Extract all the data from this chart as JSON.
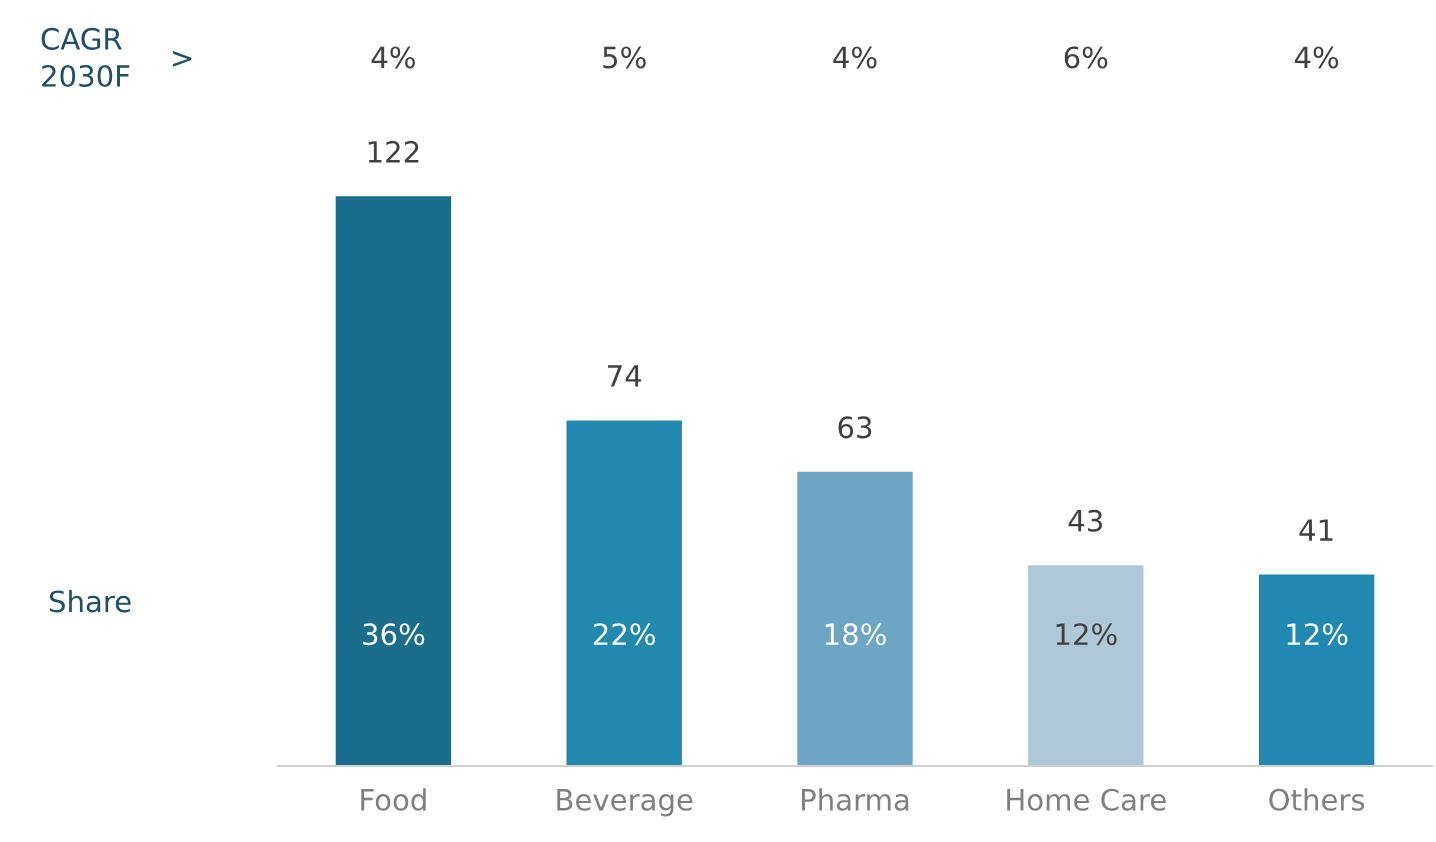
{
  "chart_data": {
    "type": "bar",
    "categories": [
      "Food",
      "Beverage",
      "Pharma",
      "Home Care",
      "Others"
    ],
    "values": [
      122,
      74,
      63,
      43,
      41
    ],
    "colors": [
      "#1b6d8c",
      "#2189ae",
      "#6fa5c4",
      "#afc8d8",
      "#2189b1"
    ],
    "data_labels": true,
    "grid": false,
    "legend": false,
    "annotations": [
      "CAGR\n2030F",
      ">",
      "Share",
      "4%",
      "5%",
      "4%",
      "6%",
      "4%",
      "36%",
      "22%",
      "18%",
      "12%",
      "12%"
    ]
  }
}
